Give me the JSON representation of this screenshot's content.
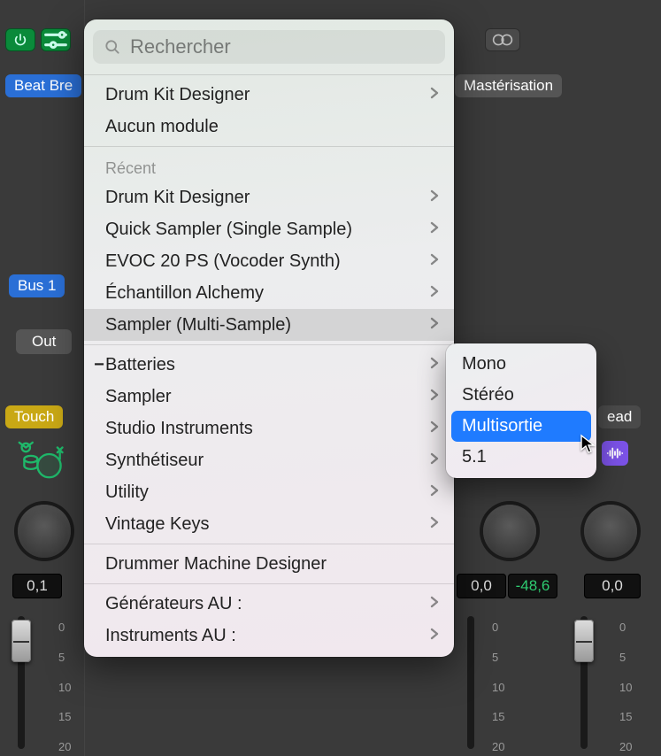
{
  "colors": {
    "chip_blue": "#2a6fd6",
    "chip_grey": "#555555",
    "chip_yellow": "#c9a815",
    "chip_purple": "#7b52e6",
    "power_green": "#0a8a3a",
    "drum_green": "#1fb86a",
    "menu_highlight": "#1f7bff",
    "value_green": "#2ecc71"
  },
  "background_chips": {
    "beat": "Beat Bre",
    "masterisation": "Mastérisation",
    "bus": "Bus 1",
    "out": "Out",
    "touch": "Touch",
    "ead": "ead"
  },
  "knob_values": {
    "left": "0,1",
    "mid_left": "0,0",
    "mid_right": "-48,6",
    "right": "0,0"
  },
  "fader_scale": [
    "0",
    "5",
    "10",
    "15",
    "20"
  ],
  "search": {
    "placeholder": "Rechercher"
  },
  "menu": {
    "top": [
      {
        "label": "Drum Kit Designer",
        "arrow": true
      },
      {
        "label": "Aucun module",
        "arrow": false
      }
    ],
    "recent_label": "Récent",
    "recent": [
      {
        "label": "Drum Kit Designer",
        "arrow": true
      },
      {
        "label": "Quick Sampler (Single Sample)",
        "arrow": true
      },
      {
        "label": "EVOC 20 PS (Vocoder Synth)",
        "arrow": true
      },
      {
        "label": "Échantillon Alchemy",
        "arrow": true
      },
      {
        "label": "Sampler (Multi-Sample)",
        "arrow": true,
        "hovered": true
      }
    ],
    "categories": [
      {
        "label": "Batteries",
        "arrow": true,
        "disclosure": "−"
      },
      {
        "label": "Sampler",
        "arrow": true
      },
      {
        "label": "Studio Instruments",
        "arrow": true
      },
      {
        "label": "Synthétiseur",
        "arrow": true
      },
      {
        "label": "Utility",
        "arrow": true
      },
      {
        "label": "Vintage Keys",
        "arrow": true
      }
    ],
    "bottom": [
      {
        "label": "Drummer Machine Designer",
        "arrow": false
      }
    ],
    "au": [
      {
        "label": "Générateurs AU :",
        "arrow": true
      },
      {
        "label": "Instruments AU :",
        "arrow": true
      }
    ]
  },
  "submenu": [
    {
      "label": "Mono"
    },
    {
      "label": "Stéréo"
    },
    {
      "label": "Multisortie",
      "selected": true
    },
    {
      "label": "5.1"
    }
  ]
}
